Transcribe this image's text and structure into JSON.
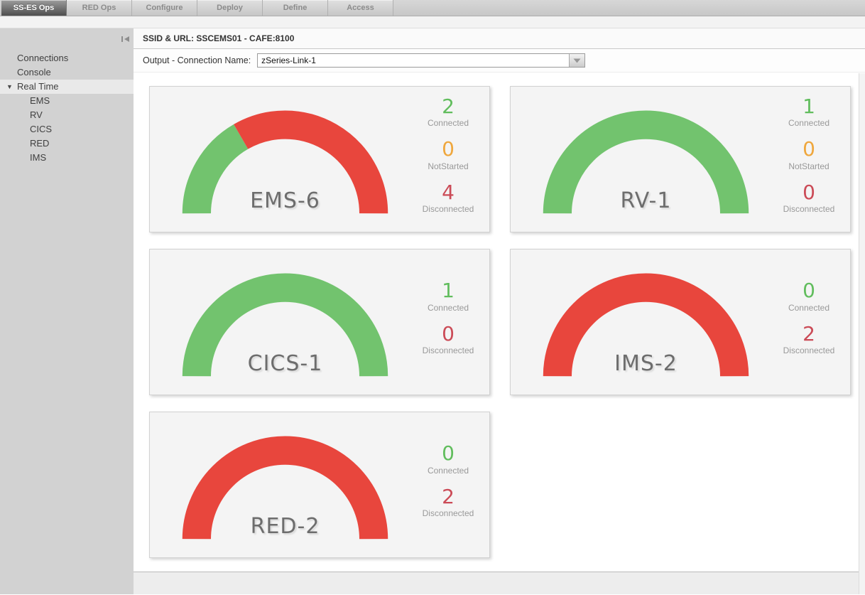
{
  "tabs": {
    "items": [
      {
        "label": "SS-ES Ops",
        "active": true
      },
      {
        "label": "RED Ops",
        "active": false
      },
      {
        "label": "Configure",
        "active": false
      },
      {
        "label": "Deploy",
        "active": false
      },
      {
        "label": "Define",
        "active": false
      },
      {
        "label": "Access",
        "active": false
      }
    ]
  },
  "sidebar": {
    "items": [
      {
        "label": "Connections",
        "level": 0,
        "selected": false,
        "expanded": false
      },
      {
        "label": "Console",
        "level": 0,
        "selected": false,
        "expanded": false
      },
      {
        "label": "Real Time",
        "level": 0,
        "selected": true,
        "expanded": true
      },
      {
        "label": "EMS",
        "level": 1,
        "selected": false,
        "expanded": false
      },
      {
        "label": "RV",
        "level": 1,
        "selected": false,
        "expanded": false
      },
      {
        "label": "CICS",
        "level": 1,
        "selected": false,
        "expanded": false
      },
      {
        "label": "RED",
        "level": 1,
        "selected": false,
        "expanded": false
      },
      {
        "label": "IMS",
        "level": 1,
        "selected": false,
        "expanded": false
      }
    ],
    "caret_glyph": "▼"
  },
  "header": {
    "title": "SSID & URL: SSCEMS01 - CAFE:8100"
  },
  "toolbar": {
    "label": "Output - Connection Name:",
    "dropdown_value": "zSeries-Link-1"
  },
  "palette": {
    "gauge_green": "#72c36e",
    "gauge_red": "#e8463d",
    "stat_green": "#61bd5d",
    "stat_orange": "#efa73d",
    "stat_red": "#cb4b57"
  },
  "chart_data": [
    {
      "type": "gauge",
      "title": "EMS-6",
      "segments": [
        {
          "status": "Connected",
          "value": 2,
          "color": "#72c36e"
        },
        {
          "status": "Disconnected",
          "value": 4,
          "color": "#e8463d"
        }
      ],
      "stats": [
        {
          "value": "2",
          "label": "Connected",
          "color": "#61bd5d"
        },
        {
          "value": "0",
          "label": "NotStarted",
          "color": "#efa73d"
        },
        {
          "value": "4",
          "label": "Disconnected",
          "color": "#cb4b57"
        }
      ]
    },
    {
      "type": "gauge",
      "title": "RV-1",
      "segments": [
        {
          "status": "Connected",
          "value": 1,
          "color": "#72c36e"
        }
      ],
      "stats": [
        {
          "value": "1",
          "label": "Connected",
          "color": "#61bd5d"
        },
        {
          "value": "0",
          "label": "NotStarted",
          "color": "#efa73d"
        },
        {
          "value": "0",
          "label": "Disconnected",
          "color": "#cb4b57"
        }
      ]
    },
    {
      "type": "gauge",
      "title": "CICS-1",
      "segments": [
        {
          "status": "Connected",
          "value": 1,
          "color": "#72c36e"
        }
      ],
      "stats": [
        {
          "value": "1",
          "label": "Connected",
          "color": "#61bd5d"
        },
        {
          "value": "0",
          "label": "Disconnected",
          "color": "#cb4b57"
        }
      ]
    },
    {
      "type": "gauge",
      "title": "IMS-2",
      "segments": [
        {
          "status": "Disconnected",
          "value": 2,
          "color": "#e8463d"
        }
      ],
      "stats": [
        {
          "value": "0",
          "label": "Connected",
          "color": "#61bd5d"
        },
        {
          "value": "2",
          "label": "Disconnected",
          "color": "#cb4b57"
        }
      ]
    },
    {
      "type": "gauge",
      "title": "RED-2",
      "segments": [
        {
          "status": "Disconnected",
          "value": 2,
          "color": "#e8463d"
        }
      ],
      "stats": [
        {
          "value": "0",
          "label": "Connected",
          "color": "#61bd5d"
        },
        {
          "value": "2",
          "label": "Disconnected",
          "color": "#cb4b57"
        }
      ]
    }
  ]
}
